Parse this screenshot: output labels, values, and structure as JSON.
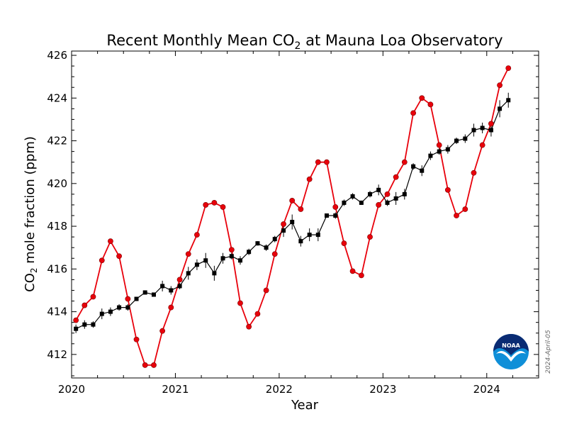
{
  "chart_data": {
    "type": "line",
    "title_prefix": "Recent Monthly Mean CO",
    "title_sub": "2",
    "title_suffix": " at Mauna Loa Observatory",
    "ylabel_prefix": "CO",
    "ylabel_sub": "2",
    "ylabel_suffix": " mole fraction (ppm)",
    "xlabel": "Year",
    "xlim": [
      2020.0,
      2024.5
    ],
    "ylim": [
      410.9,
      426.2
    ],
    "xticks": [
      2020,
      2021,
      2022,
      2023,
      2024
    ],
    "xtick_labels": [
      "2020",
      "2021",
      "2022",
      "2023",
      "2024"
    ],
    "yticks": [
      412,
      414,
      416,
      418,
      420,
      422,
      424,
      426
    ],
    "ytick_labels": [
      "412",
      "414",
      "416",
      "418",
      "420",
      "422",
      "424",
      "426"
    ],
    "grid": false,
    "date_stamp": "2024-April-05",
    "logo_text": "NOAA",
    "colors": {
      "monthly_mean": "#e8000b",
      "deseasonalized": "#000000",
      "logo_blue": "#0f8fd8",
      "logo_navy": "#0a2b73"
    },
    "series": [
      {
        "x": [
          2020.042,
          2020.125,
          2020.208,
          2020.292,
          2020.375,
          2020.458,
          2020.542,
          2020.625,
          2020.708,
          2020.792,
          2020.875,
          2020.958,
          2021.042,
          2021.125,
          2021.208,
          2021.292,
          2021.375,
          2021.458,
          2021.542,
          2021.625,
          2021.708,
          2021.792,
          2021.875,
          2021.958,
          2022.042,
          2022.125,
          2022.208,
          2022.292,
          2022.375,
          2022.458,
          2022.542,
          2022.625,
          2022.708,
          2022.792,
          2022.875,
          2022.958,
          2023.042,
          2023.125,
          2023.208,
          2023.292,
          2023.375,
          2023.458,
          2023.542,
          2023.625,
          2023.708,
          2023.792,
          2023.875,
          2023.958,
          2024.042,
          2024.125,
          2024.208
        ],
        "values": [
          413.6,
          414.3,
          414.7,
          416.4,
          417.3,
          416.6,
          414.6,
          412.7,
          411.5,
          411.5,
          413.1,
          414.2,
          415.5,
          416.7,
          417.6,
          419.0,
          419.1,
          418.9,
          416.9,
          414.4,
          413.3,
          413.9,
          415.0,
          416.7,
          418.1,
          419.2,
          418.8,
          420.2,
          421.0,
          421.0,
          418.9,
          417.2,
          415.9,
          415.7,
          417.5,
          419.0,
          419.5,
          420.3,
          421.0,
          423.3,
          424.0,
          423.7,
          421.8,
          419.7,
          418.5,
          418.8,
          420.5,
          421.8,
          422.8,
          424.6,
          425.4
        ]
      },
      {
        "x": [
          2020.042,
          2020.125,
          2020.208,
          2020.292,
          2020.375,
          2020.458,
          2020.542,
          2020.625,
          2020.708,
          2020.792,
          2020.875,
          2020.958,
          2021.042,
          2021.125,
          2021.208,
          2021.292,
          2021.375,
          2021.458,
          2021.542,
          2021.625,
          2021.708,
          2021.792,
          2021.875,
          2021.958,
          2022.042,
          2022.125,
          2022.208,
          2022.292,
          2022.375,
          2022.458,
          2022.542,
          2022.625,
          2022.708,
          2022.792,
          2022.875,
          2022.958,
          2023.042,
          2023.125,
          2023.208,
          2023.292,
          2023.375,
          2023.458,
          2023.542,
          2023.625,
          2023.708,
          2023.792,
          2023.875,
          2023.958,
          2024.042,
          2024.125,
          2024.208
        ],
        "values": [
          413.2,
          413.4,
          413.4,
          413.9,
          414.0,
          414.2,
          414.2,
          414.6,
          414.9,
          414.8,
          415.2,
          415.0,
          415.2,
          415.8,
          416.2,
          416.4,
          415.8,
          416.5,
          416.6,
          416.4,
          416.8,
          417.2,
          417.0,
          417.4,
          417.8,
          418.2,
          417.3,
          417.6,
          417.6,
          418.5,
          418.5,
          419.1,
          419.4,
          419.1,
          419.5,
          419.7,
          419.1,
          419.3,
          419.5,
          420.8,
          420.6,
          421.3,
          421.5,
          421.6,
          422.0,
          422.1,
          422.5,
          422.6,
          422.5,
          423.5,
          423.9
        ],
        "errors": [
          0.2,
          0.2,
          0.15,
          0.25,
          0.2,
          0.15,
          0.15,
          0.1,
          0.1,
          0.1,
          0.25,
          0.2,
          0.15,
          0.3,
          0.25,
          0.35,
          0.35,
          0.25,
          0.15,
          0.2,
          0.15,
          0.1,
          0.15,
          0.15,
          0.3,
          0.35,
          0.25,
          0.3,
          0.3,
          0.1,
          0.15,
          0.15,
          0.15,
          0.1,
          0.15,
          0.25,
          0.15,
          0.3,
          0.25,
          0.15,
          0.25,
          0.2,
          0.15,
          0.2,
          0.15,
          0.2,
          0.3,
          0.25,
          0.3,
          0.4,
          0.35
        ]
      }
    ]
  }
}
